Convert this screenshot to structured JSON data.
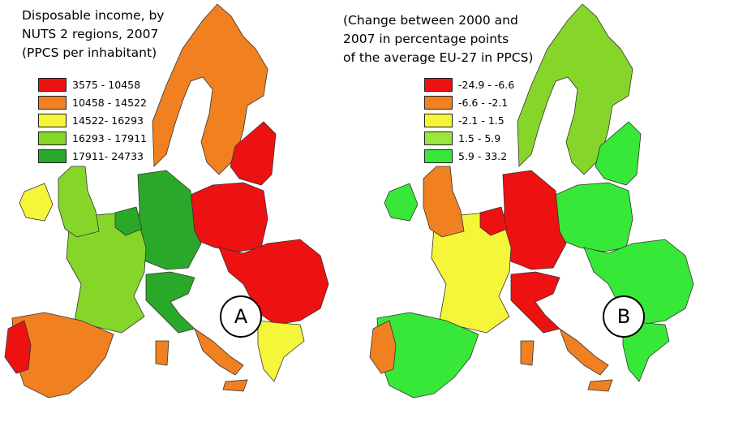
{
  "panel_a": {
    "title_lines": [
      "Disposable income, by",
      "NUTS 2 regions, 2007",
      "(PPCS per inhabitant)"
    ],
    "legend": [
      {
        "label": "3575 - 10458",
        "color": "#ee1111"
      },
      {
        "label": "10458 - 14522",
        "color": "#f08020"
      },
      {
        "label": "14522- 16293",
        "color": "#f5f53a"
      },
      {
        "label": "16293 - 17911",
        "color": "#86d62a"
      },
      {
        "label": "17911- 24733",
        "color": "#2aa82a"
      }
    ],
    "badge": "A"
  },
  "panel_b": {
    "title_lines": [
      "(Change between 2000 and",
      "2007 in percentage points",
      "of the average EU-27 in PPCS)"
    ],
    "legend": [
      {
        "label": "-24.9 - -6.6",
        "color": "#ee1111"
      },
      {
        "label": "-6.6 - -2.1",
        "color": "#f08020"
      },
      {
        "label": "-2.1 - 1.5",
        "color": "#f5f53a"
      },
      {
        "label": "1.5 - 5.9",
        "color": "#9ae63a"
      },
      {
        "label": "5.9 - 33.2",
        "color": "#38e838"
      }
    ],
    "badge": "B"
  },
  "map_colors": {
    "a": {
      "nordic": "#f08020",
      "baltic": "#ee1111",
      "poland": "#ee1111",
      "balkans": "#ee1111",
      "germany": "#2aa82a",
      "france": "#86d62a",
      "iberia": "#f08020",
      "portugal": "#ee1111",
      "italy_north": "#2aa82a",
      "italy_south": "#f08020",
      "greece": "#f5f53a",
      "uk": "#86d62a",
      "ireland": "#f5f53a",
      "benelux": "#2aa82a"
    },
    "b": {
      "nordic": "#86d62a",
      "baltic": "#38e838",
      "poland": "#38e838",
      "balkans": "#38e838",
      "germany": "#ee1111",
      "france": "#f5f53a",
      "iberia": "#38e838",
      "portugal": "#f08020",
      "italy_north": "#ee1111",
      "italy_south": "#f08020",
      "greece": "#38e838",
      "uk": "#f08020",
      "ireland": "#38e838",
      "benelux": "#ee1111"
    }
  }
}
